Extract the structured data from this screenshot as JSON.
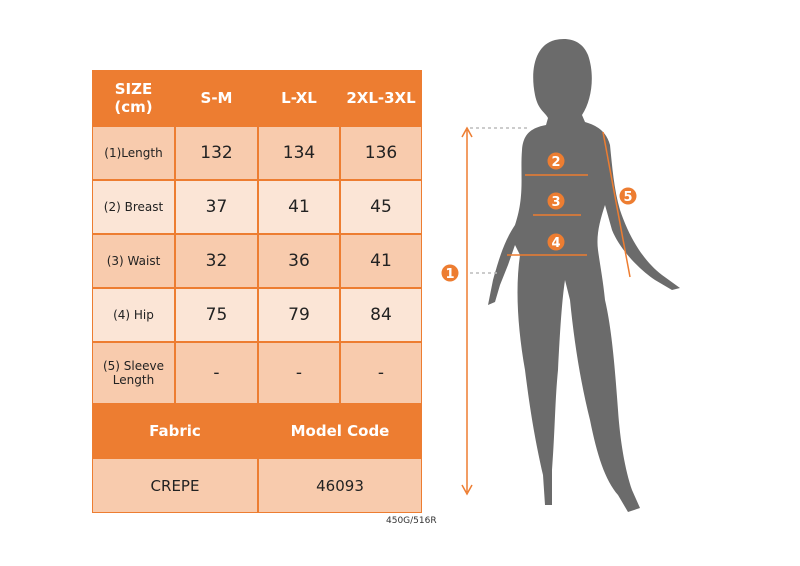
{
  "table": {
    "header": [
      "SIZE\n(cm)",
      "S-M",
      "L-XL",
      "2XL-3XL"
    ],
    "rows": [
      {
        "label": "(1)Length",
        "values": [
          "132",
          "134",
          "136"
        ]
      },
      {
        "label": "(2) Breast",
        "values": [
          "37",
          "41",
          "45"
        ]
      },
      {
        "label": "(3) Waist",
        "values": [
          "32",
          "36",
          "41"
        ]
      },
      {
        "label": "(4) Hip",
        "values": [
          "75",
          "79",
          "84"
        ]
      },
      {
        "label": "(5) Sleeve Length",
        "values": [
          "-",
          "-",
          "-"
        ]
      }
    ],
    "fabric_header": "Fabric",
    "model_header": "Model Code",
    "fabric": "CREPE",
    "model_code": "46093"
  },
  "figure": {
    "markers": [
      "1",
      "2",
      "3",
      "4",
      "5"
    ],
    "accent": "#ed7d31",
    "silhouette": "#6b6b6b"
  },
  "note": "450G/516R"
}
